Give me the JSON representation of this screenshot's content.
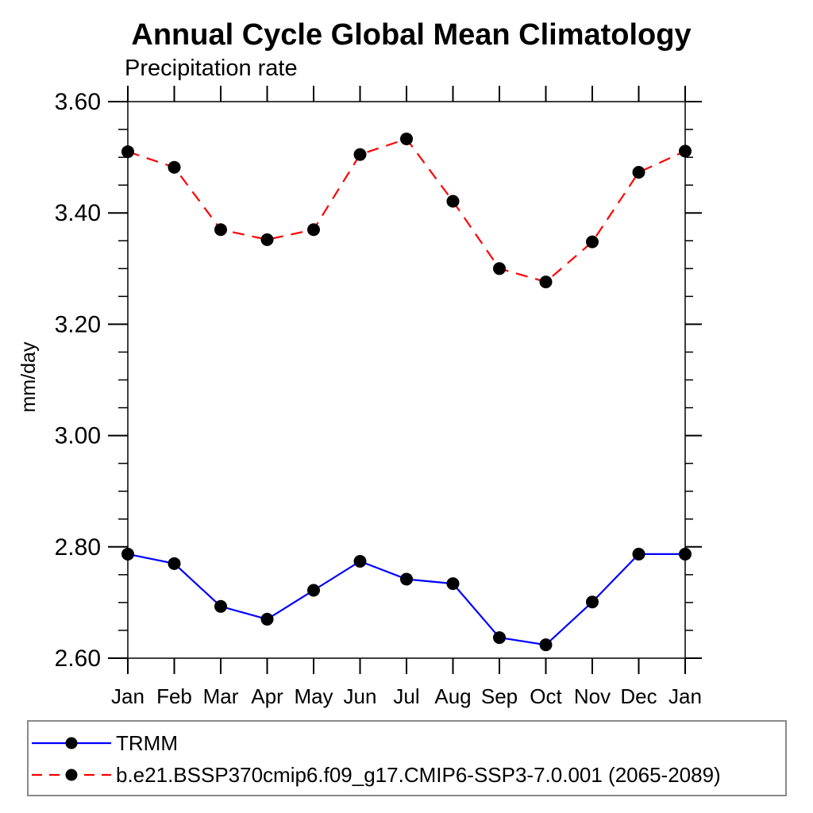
{
  "chart_data": {
    "type": "line",
    "title": "Annual Cycle Global Mean Climatology",
    "subtitle_left": "Precipitation rate",
    "ylabel": "mm/day",
    "categories": [
      "Jan",
      "Feb",
      "Mar",
      "Apr",
      "May",
      "Jun",
      "Jul",
      "Aug",
      "Sep",
      "Oct",
      "Nov",
      "Dec",
      "Jan"
    ],
    "series": [
      {
        "name": "TRMM",
        "color": "#0000ff",
        "line_style": "solid",
        "marker": "filled-circle",
        "marker_color": "#000000",
        "values": [
          2.787,
          2.77,
          2.693,
          2.67,
          2.722,
          2.774,
          2.742,
          2.734,
          2.637,
          2.624,
          2.701,
          2.787,
          2.787
        ]
      },
      {
        "name": "b.e21.BSSP370cmip6.f09_g17.CMIP6-SSP3-7.0.001 (2065-2089)",
        "color": "#ff0000",
        "line_style": "dashed",
        "marker": "filled-circle",
        "marker_color": "#000000",
        "values": [
          3.51,
          3.482,
          3.37,
          3.352,
          3.37,
          3.505,
          3.533,
          3.421,
          3.3,
          3.276,
          3.348,
          3.473,
          3.511
        ]
      }
    ],
    "ylim": [
      2.6,
      3.6
    ],
    "ytick_values": [
      2.6,
      2.8,
      3.0,
      3.2,
      3.4,
      3.6
    ],
    "ytick_labels": [
      "2.60",
      "2.80",
      "3.00",
      "3.20",
      "3.40",
      "3.60"
    ],
    "yminor_step": 0.05,
    "grid": false,
    "legend_position": "bottom-left-box",
    "axis_color": "#3f3f3f",
    "tick_color": "#000000"
  }
}
